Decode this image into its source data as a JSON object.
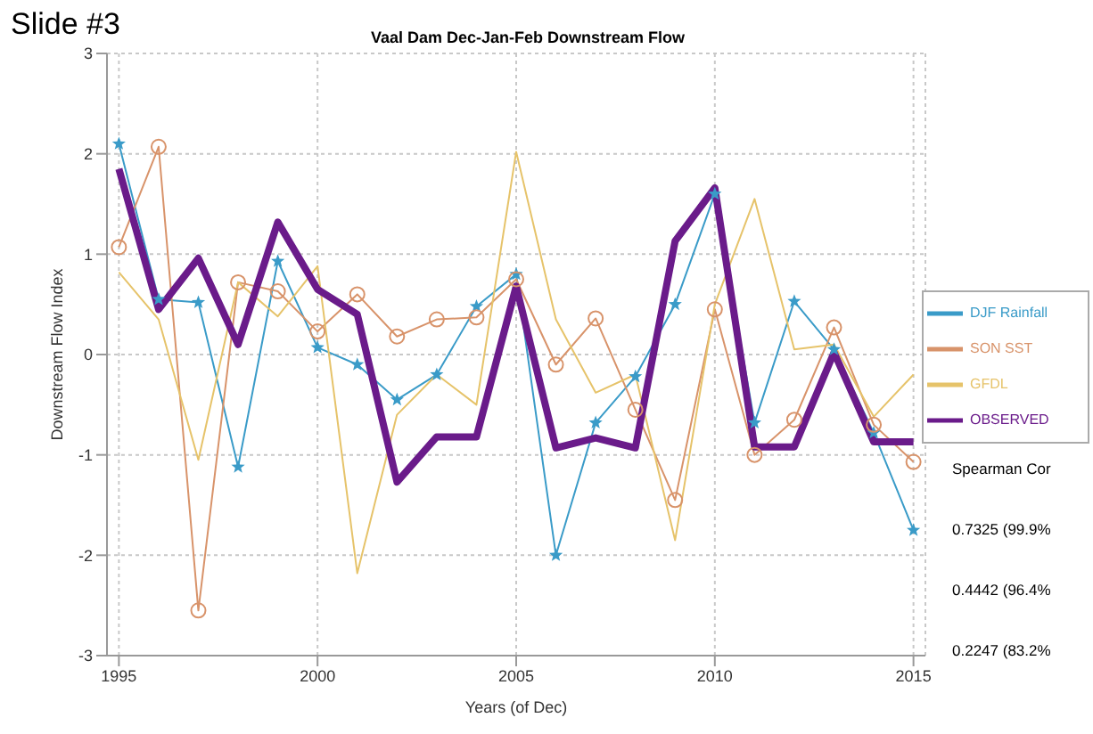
{
  "chart_data": {
    "type": "line",
    "title": "Vaal Dam Dec-Jan-Feb Downstream Flow",
    "xlabel": "Years (of Dec)",
    "ylabel": "Downstream Flow Index",
    "annotations": [
      "Slide #3",
      "Spearman Cor",
      "0.7325 (99.9%",
      "0.4442 (96.4%",
      "0.2247 (83.2%"
    ],
    "x": [
      1995,
      1996,
      1997,
      1998,
      1999,
      2000,
      2001,
      2002,
      2003,
      2004,
      2005,
      2006,
      2007,
      2008,
      2009,
      2010,
      2011,
      2012,
      2013,
      2014,
      2015
    ],
    "series": [
      {
        "name": "DJF Rainfall",
        "color": "#3a9bc8",
        "marker": "star",
        "values": [
          2.1,
          0.55,
          0.52,
          -1.12,
          0.93,
          0.07,
          -0.1,
          -0.45,
          -0.2,
          0.48,
          0.8,
          -2.0,
          -0.68,
          -0.22,
          0.5,
          1.6,
          -0.68,
          0.53,
          0.05,
          -0.78,
          -1.75
        ]
      },
      {
        "name": "SON SST",
        "color": "#d8936a",
        "marker": "circle",
        "values": [
          1.07,
          2.07,
          -2.55,
          0.72,
          0.63,
          0.23,
          0.6,
          0.18,
          0.35,
          0.37,
          0.75,
          -0.1,
          0.36,
          -0.55,
          -1.45,
          0.45,
          -1.0,
          -0.65,
          0.27,
          -0.7,
          -1.07
        ]
      },
      {
        "name": "GFDL",
        "color": "#e6c36a",
        "marker": "none",
        "values": [
          0.82,
          0.35,
          -1.05,
          0.72,
          0.38,
          0.88,
          -2.18,
          -0.6,
          -0.2,
          -0.5,
          2.02,
          0.35,
          -0.38,
          -0.2,
          -1.85,
          0.5,
          1.55,
          0.05,
          0.1,
          -0.62,
          -0.2
        ]
      },
      {
        "name": "OBSERVED",
        "color": "#6a1b8a",
        "marker": "none",
        "values": [
          1.85,
          0.45,
          0.96,
          0.1,
          1.32,
          0.65,
          0.4,
          -1.27,
          -0.82,
          -0.82,
          0.68,
          -0.93,
          -0.83,
          -0.93,
          1.13,
          1.66,
          -0.92,
          -0.92,
          0.02,
          -0.87,
          -0.87
        ]
      }
    ],
    "xlim": [
      1994.7,
      2015.3
    ],
    "xticks": [
      1995,
      2000,
      2005,
      2010,
      2015
    ],
    "ylim": [
      -3,
      3
    ],
    "yticks": [
      -3,
      -2,
      -1,
      0,
      1,
      2,
      3
    ],
    "grid": true,
    "legend": "right",
    "line_style": "solid"
  }
}
